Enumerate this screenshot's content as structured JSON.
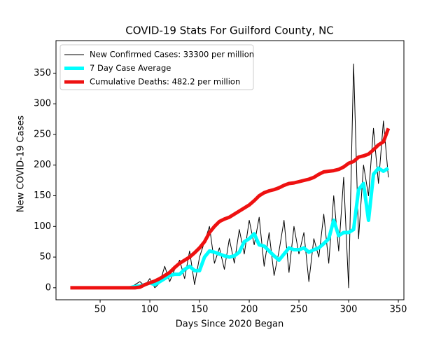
{
  "chart_data": {
    "type": "line",
    "title": "COVID-19 Stats For Guilford County, NC",
    "xlabel": "Days Since 2020 Began",
    "ylabel": "New COVID-19 Cases",
    "x": [
      20,
      25,
      30,
      35,
      40,
      45,
      50,
      55,
      60,
      65,
      70,
      75,
      80,
      85,
      90,
      95,
      100,
      105,
      110,
      115,
      120,
      125,
      130,
      135,
      140,
      145,
      150,
      155,
      160,
      165,
      170,
      175,
      180,
      185,
      190,
      195,
      200,
      205,
      210,
      215,
      220,
      225,
      230,
      235,
      240,
      245,
      250,
      255,
      260,
      265,
      270,
      275,
      280,
      285,
      290,
      295,
      300,
      305,
      310,
      315,
      320,
      325,
      330,
      335,
      340
    ],
    "series": [
      {
        "name": "New Confirmed Cases: 33300 per million",
        "color": "#000000",
        "width": 1,
        "values": [
          null,
          null,
          null,
          null,
          null,
          null,
          null,
          null,
          null,
          null,
          null,
          null,
          0,
          5,
          10,
          3,
          15,
          0,
          8,
          35,
          10,
          30,
          45,
          15,
          60,
          5,
          50,
          75,
          100,
          40,
          65,
          30,
          80,
          40,
          95,
          55,
          110,
          70,
          115,
          35,
          90,
          20,
          60,
          110,
          25,
          100,
          55,
          90,
          10,
          80,
          50,
          120,
          40,
          150,
          60,
          180,
          0,
          365,
          80,
          200,
          150,
          260,
          170,
          272,
          180
        ]
      },
      {
        "name": "7 Day Case Average",
        "color": "#00ffff",
        "width": 5,
        "values": [
          null,
          null,
          null,
          null,
          null,
          null,
          null,
          null,
          null,
          null,
          null,
          null,
          0,
          2,
          3,
          5,
          8,
          5,
          10,
          15,
          20,
          22,
          22,
          30,
          35,
          28,
          28,
          50,
          60,
          58,
          55,
          52,
          50,
          52,
          58,
          75,
          80,
          88,
          70,
          68,
          60,
          52,
          45,
          55,
          65,
          62,
          62,
          65,
          58,
          62,
          65,
          72,
          80,
          110,
          85,
          90,
          90,
          95,
          160,
          170,
          110,
          185,
          195,
          190,
          195
        ]
      },
      {
        "name": "Cumulative Deaths: 482.2 per million",
        "color": "#ee1111",
        "width": 5,
        "values": [
          0,
          0,
          0,
          0,
          0,
          0,
          0,
          0,
          0,
          0,
          0,
          0,
          0,
          0,
          1,
          5,
          8,
          11,
          15,
          20,
          25,
          33,
          40,
          45,
          50,
          57,
          65,
          75,
          90,
          100,
          108,
          112,
          115,
          120,
          125,
          130,
          135,
          142,
          150,
          155,
          158,
          160,
          163,
          167,
          170,
          171,
          173,
          175,
          177,
          180,
          185,
          189,
          190,
          191,
          193,
          197,
          203,
          206,
          213,
          215,
          218,
          225,
          233,
          238,
          260
        ]
      }
    ],
    "xlim": [
      5.6,
      355.6
    ],
    "xticks": [
      50,
      100,
      150,
      200,
      250,
      300,
      350
    ],
    "ylim": [
      -19.6,
      403
    ],
    "yticks": [
      0,
      50,
      100,
      150,
      200,
      250,
      300,
      350
    ],
    "legend": "upper left"
  }
}
